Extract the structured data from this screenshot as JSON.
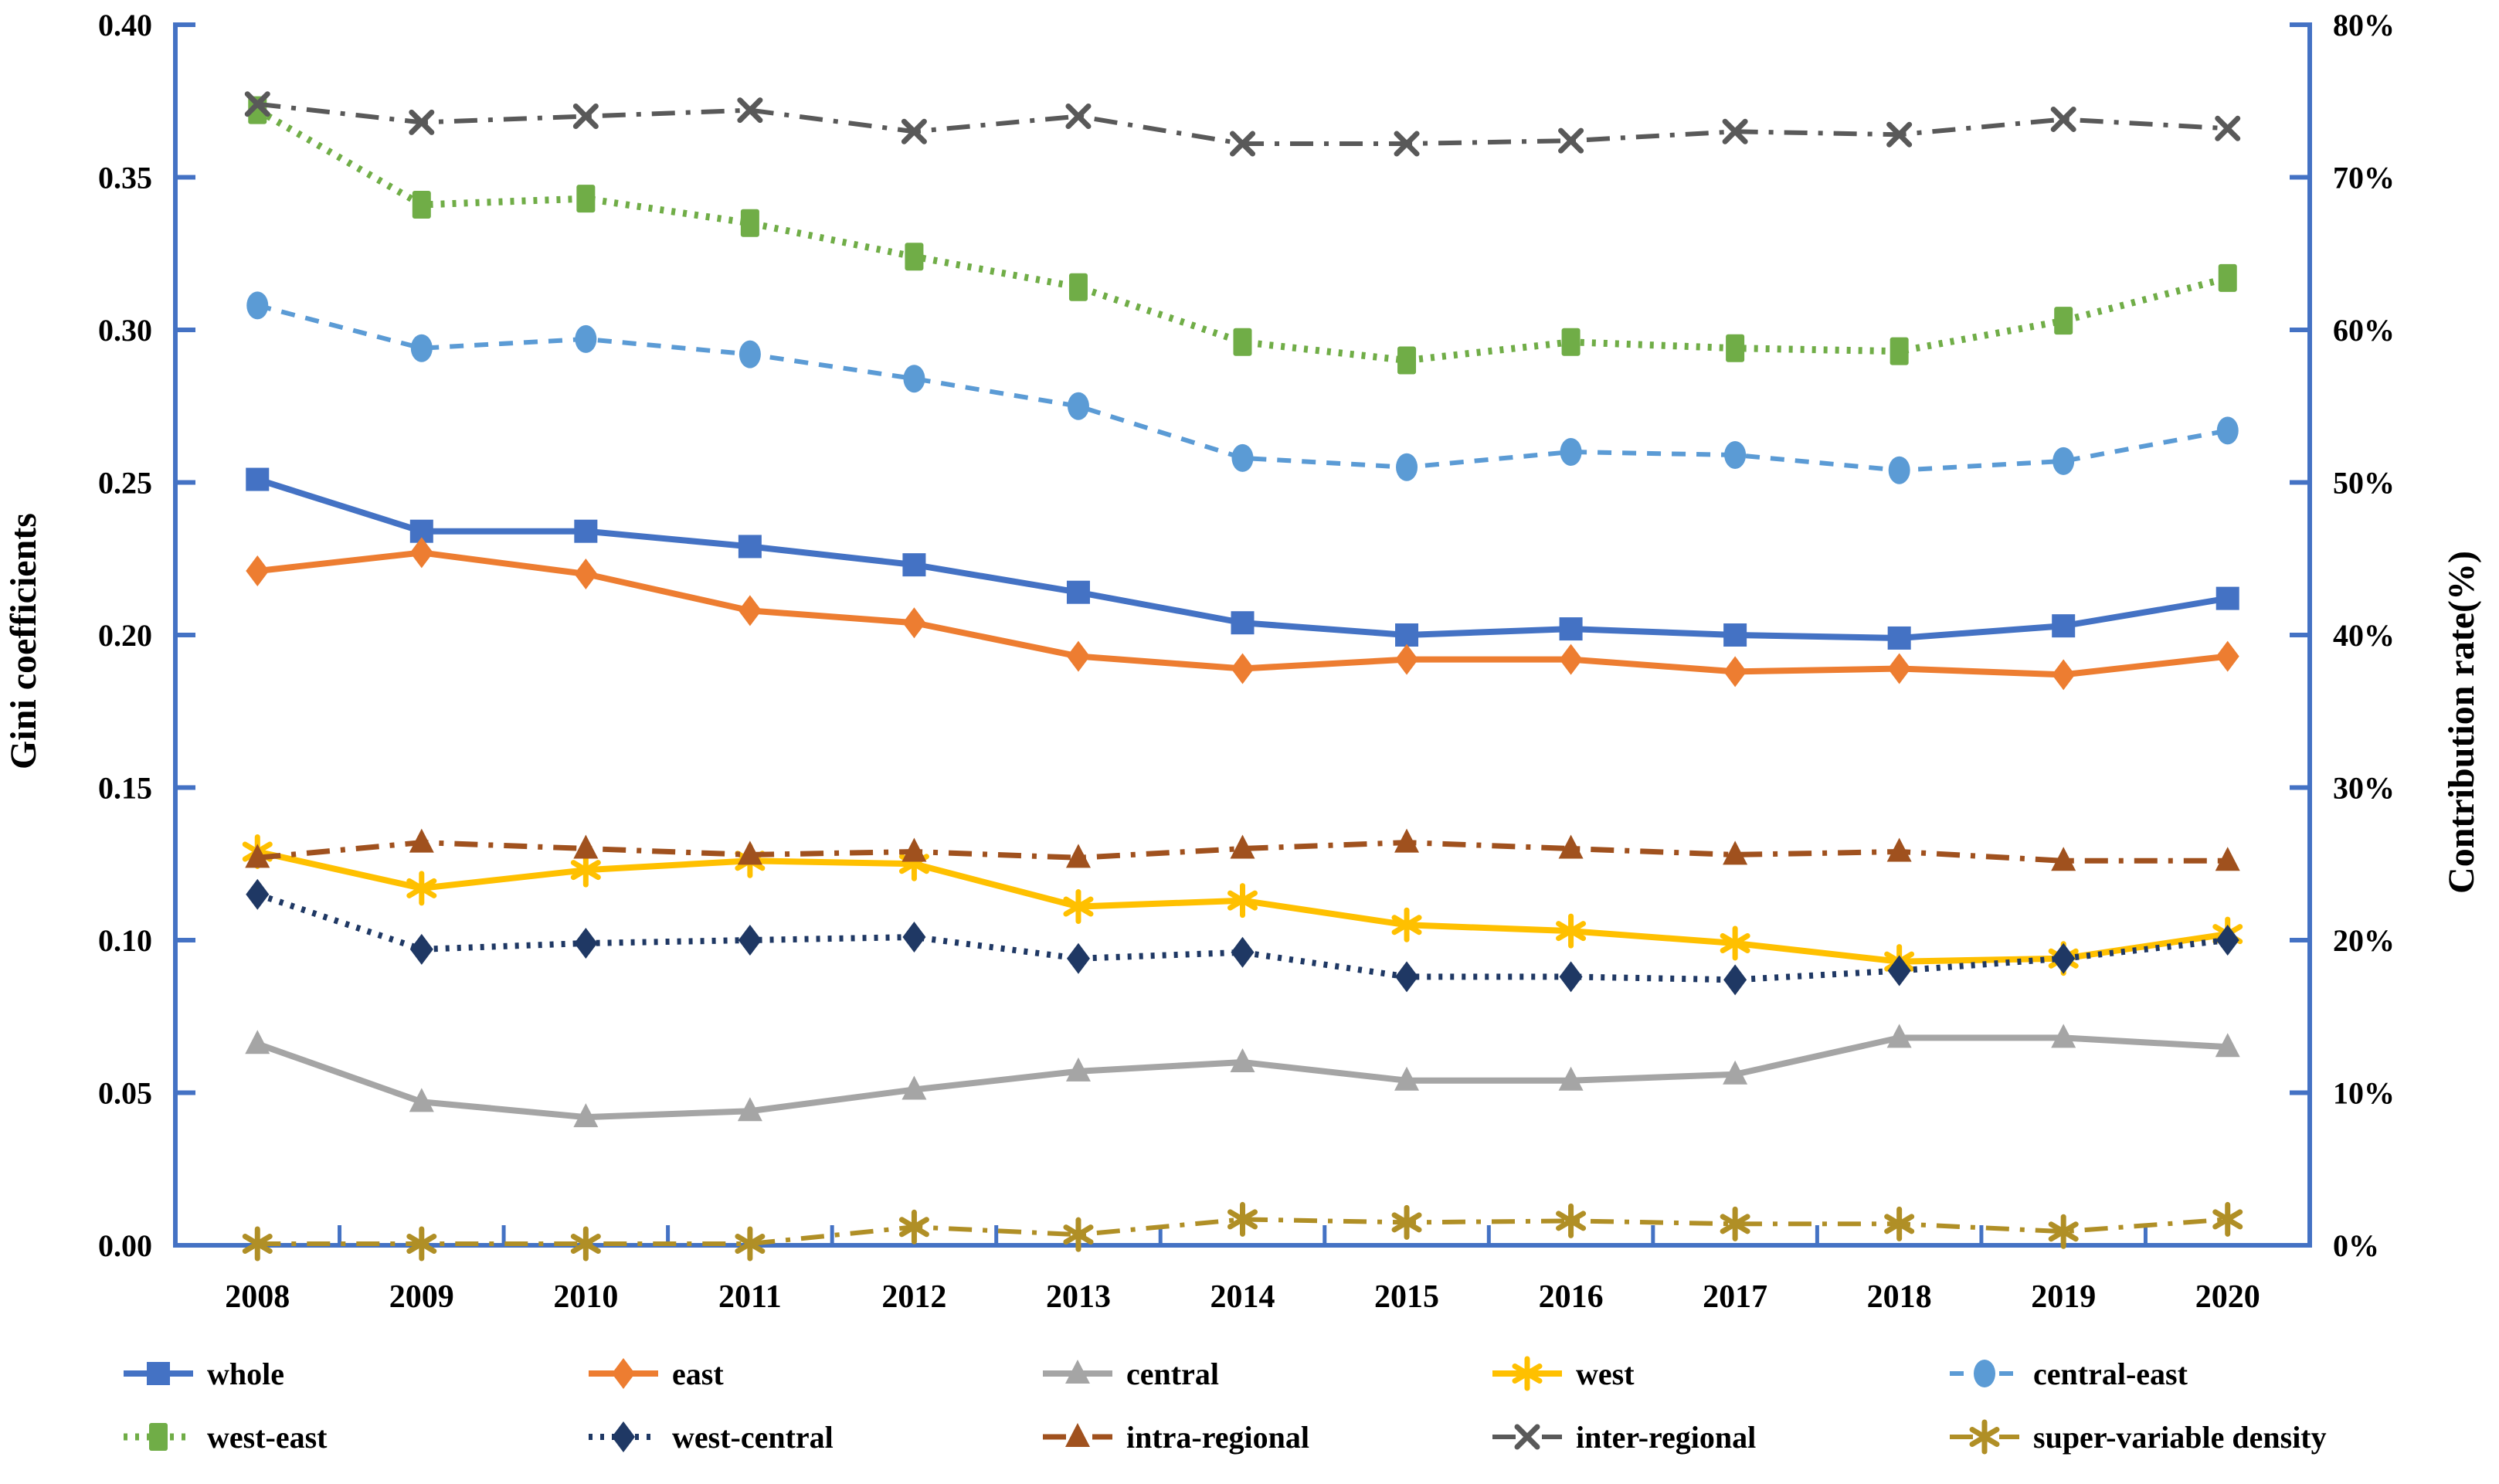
{
  "chart_data": {
    "type": "line",
    "title": "",
    "categories": [
      "2008",
      "2009",
      "2010",
      "2011",
      "2012",
      "2013",
      "2014",
      "2015",
      "2016",
      "2017",
      "2018",
      "2019",
      "2020"
    ],
    "grid": false,
    "legend_position": "bottom",
    "axis_color": "#4472C4",
    "left_axis": {
      "title": "Gini coefficients",
      "min": 0,
      "max": 0.4,
      "step": 0.05,
      "tick_labels": [
        "0.00",
        "0.05",
        "0.10",
        "0.15",
        "0.20",
        "0.25",
        "0.30",
        "0.35",
        "0.40"
      ]
    },
    "right_axis": {
      "title": "Contribution rate(%)",
      "min": 0,
      "max": 80,
      "step": 10,
      "tick_labels": [
        "0%",
        "10%",
        "20%",
        "30%",
        "40%",
        "50%",
        "60%",
        "70%",
        "80%"
      ]
    },
    "series": [
      {
        "name": "whole",
        "axis": "left",
        "color": "#4472C4",
        "line": "solid",
        "marker": "square",
        "width": 8,
        "values": [
          0.251,
          0.234,
          0.234,
          0.229,
          0.223,
          0.214,
          0.204,
          0.2,
          0.202,
          0.2,
          0.199,
          0.203,
          0.212
        ]
      },
      {
        "name": "east",
        "axis": "left",
        "color": "#ED7D31",
        "line": "solid",
        "marker": "diamond",
        "width": 8,
        "values": [
          0.221,
          0.227,
          0.22,
          0.208,
          0.204,
          0.193,
          0.189,
          0.192,
          0.192,
          0.188,
          0.189,
          0.187,
          0.193
        ]
      },
      {
        "name": "central",
        "axis": "left",
        "color": "#A5A5A5",
        "line": "solid",
        "marker": "triangle",
        "width": 8,
        "values": [
          0.066,
          0.047,
          0.042,
          0.044,
          0.051,
          0.057,
          0.06,
          0.054,
          0.054,
          0.056,
          0.068,
          0.068,
          0.065
        ]
      },
      {
        "name": "west",
        "axis": "left",
        "color": "#FFC000",
        "line": "solid",
        "marker": "asterisk",
        "width": 8,
        "values": [
          0.129,
          0.117,
          0.123,
          0.126,
          0.125,
          0.111,
          0.113,
          0.105,
          0.103,
          0.099,
          0.093,
          0.094,
          0.102
        ]
      },
      {
        "name": "central-east",
        "axis": "left",
        "color": "#5B9BD5",
        "line": "dashed",
        "marker": "circle",
        "width": 6,
        "values": [
          0.308,
          0.294,
          0.297,
          0.292,
          0.284,
          0.275,
          0.258,
          0.255,
          0.26,
          0.259,
          0.254,
          0.257,
          0.267
        ]
      },
      {
        "name": "west-east",
        "axis": "left",
        "color": "#70AD47",
        "line": "dotted",
        "marker": "tallsquare",
        "width": 9,
        "values": [
          0.372,
          0.341,
          0.343,
          0.335,
          0.324,
          0.314,
          0.296,
          0.29,
          0.296,
          0.294,
          0.293,
          0.303,
          0.317
        ]
      },
      {
        "name": "west-central",
        "axis": "left",
        "color": "#1F3864",
        "line": "dotted",
        "marker": "diamond",
        "width": 8,
        "values": [
          0.115,
          0.097,
          0.099,
          0.1,
          0.101,
          0.094,
          0.096,
          0.088,
          0.088,
          0.087,
          0.09,
          0.094,
          0.1
        ]
      },
      {
        "name": "intra-regional",
        "axis": "right",
        "color": "#A0511E",
        "line": "dashdot",
        "marker": "triangle",
        "width": 7,
        "values": [
          25.4,
          26.4,
          26.0,
          25.6,
          25.8,
          25.4,
          26.0,
          26.4,
          26.0,
          25.6,
          25.8,
          25.2,
          25.2
        ]
      },
      {
        "name": "inter-regional",
        "axis": "right",
        "color": "#595959",
        "line": "dashdot",
        "marker": "x",
        "width": 6,
        "values": [
          74.8,
          73.6,
          74.0,
          74.4,
          73.0,
          74.0,
          72.2,
          72.2,
          72.4,
          73.0,
          72.8,
          73.8,
          73.2
        ]
      },
      {
        "name": "super-variable density",
        "axis": "right",
        "color": "#B08F26",
        "line": "dashdot",
        "marker": "asterisk",
        "width": 6,
        "values": [
          0.1,
          0.1,
          0.1,
          0.1,
          1.2,
          0.7,
          1.7,
          1.5,
          1.6,
          1.4,
          1.4,
          0.9,
          1.7
        ]
      }
    ]
  }
}
